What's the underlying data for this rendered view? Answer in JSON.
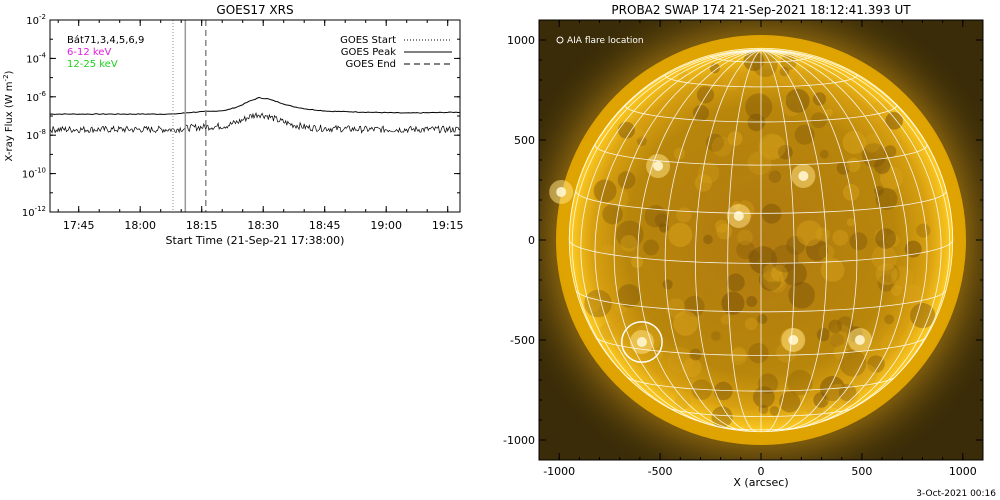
{
  "left_panel": {
    "title": "GOES17 XRS",
    "ylabel": "X-ray Flux (W m",
    "ylabel_sup": "-2",
    "ylabel_close": ")",
    "xlabel": "Start Time (21-Sep-21 17:38:00)",
    "info_lines": [
      {
        "text": "Bát71,3,4,5,6,9",
        "color": "#000000"
      },
      {
        "text": "6-12 keV",
        "color": "#e020e0"
      },
      {
        "text": "12-25 keV",
        "color": "#20d020"
      }
    ],
    "legend": [
      {
        "label": "GOES Start",
        "style": "dotted"
      },
      {
        "label": "GOES Peak",
        "style": "solid"
      },
      {
        "label": "GOES End",
        "style": "dashed"
      }
    ]
  },
  "right_panel": {
    "title": "PROBA2 SWAP 174 21-Sep-2021 18:12:41.393 UT",
    "xlabel": "X (arcsec)",
    "annotation": "AIA flare location",
    "footer": "3-Oct-2021 00:16"
  },
  "colors": {
    "axis": "#000000",
    "disk_core": "#b8860b",
    "corona": "#f2b400",
    "background_dark": "#3a2c08",
    "grid": "#ffffff"
  },
  "chart_data": [
    {
      "type": "line",
      "title": "GOES17 XRS",
      "xlabel": "Start Time (21-Sep-21 17:38:00)",
      "ylabel": "X-ray Flux (W m-2)",
      "y_scale": "log",
      "ylim": [
        1e-12,
        0.01
      ],
      "xlim": [
        "17:38",
        "19:18"
      ],
      "x_ticks": [
        "17:45",
        "18:00",
        "18:15",
        "18:30",
        "18:45",
        "19:00",
        "19:15"
      ],
      "y_ticks": [
        "10-12",
        "10-10",
        "10-8",
        "10-6",
        "10-4",
        "10-2"
      ],
      "y_tick_exponents": [
        -12,
        -10,
        -8,
        -6,
        -4,
        -2
      ],
      "markers": [
        {
          "name": "GOES Start",
          "time": "18:08",
          "style": "dotted"
        },
        {
          "name": "GOES Peak",
          "time": "18:11",
          "style": "solid"
        },
        {
          "name": "GOES End",
          "time": "18:16",
          "style": "dashed"
        }
      ],
      "series": [
        {
          "name": "",
          "times": [
            "17:38",
            "17:50",
            "18:00",
            "18:08",
            "18:13",
            "18:18",
            "18:21",
            "18:24",
            "18:27",
            "18:29",
            "18:31",
            "18:34",
            "18:37",
            "18:41",
            "18:46",
            "18:55",
            "19:05",
            "19:18"
          ],
          "log_values": [
            -6.9,
            -6.9,
            -6.9,
            -6.9,
            -6.8,
            -6.75,
            -6.7,
            -6.5,
            -6.2,
            -6.05,
            -6.1,
            -6.3,
            -6.5,
            -6.65,
            -6.75,
            -6.8,
            -6.85,
            -6.8
          ]
        },
        {
          "name": "",
          "times": [
            "17:38",
            "17:50",
            "18:00",
            "18:08",
            "18:13",
            "18:18",
            "18:21",
            "18:24",
            "18:27",
            "18:29",
            "18:31",
            "18:34",
            "18:37",
            "18:41",
            "18:46",
            "18:55",
            "19:05",
            "19:18"
          ],
          "log_values": [
            -7.7,
            -7.7,
            -7.7,
            -7.7,
            -7.6,
            -7.55,
            -7.5,
            -7.3,
            -7.0,
            -6.9,
            -7.0,
            -7.25,
            -7.45,
            -7.6,
            -7.65,
            -7.7,
            -7.7,
            -7.7
          ]
        }
      ]
    },
    {
      "type": "image",
      "title": "PROBA2 SWAP 174 21-Sep-2021 18:12:41.393 UT",
      "xlabel": "X (arcsec)",
      "ylabel": "",
      "xlim": [
        -1100,
        1100
      ],
      "ylim": [
        -1100,
        1100
      ],
      "x_ticks": [
        -1000,
        -500,
        0,
        500,
        1000
      ],
      "y_ticks": [
        -1000,
        -500,
        0,
        500,
        1000
      ],
      "solar_radius_arcsec": 950,
      "flare_location": {
        "x": -590,
        "y": -510,
        "radius": 100
      }
    }
  ]
}
